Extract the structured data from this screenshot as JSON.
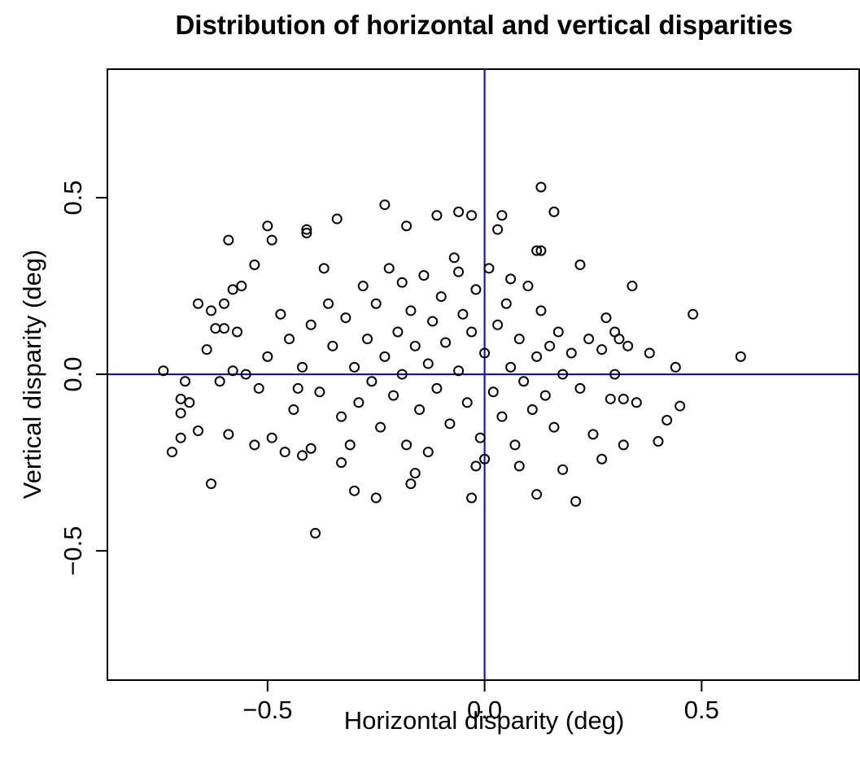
{
  "chart_data": {
    "type": "scatter",
    "title": "Distribution of horizontal and vertical disparities",
    "x_label": "Horizontal disparity (deg)",
    "y_label": "Vertical disparity (deg)",
    "xlim": [
      -0.869,
      0.863
    ],
    "ylim": [
      -0.866,
      0.864
    ],
    "xticks": [
      {
        "value": -0.5,
        "label": "−0.5"
      },
      {
        "value": 0,
        "label": "0.0"
      },
      0.5
    ],
    "yticks": [
      {
        "value": -0.5,
        "label": "−0.5"
      },
      {
        "value": 0,
        "label": "0.0"
      },
      0.5
    ],
    "grid": false,
    "reference_lines": {
      "x": 0,
      "y": 0,
      "color": "#0000cc"
    },
    "series": [
      {
        "color": "#000000",
        "x": [
          -0.74,
          -0.72,
          -0.63,
          -0.39,
          -0.03,
          0.21,
          0.59,
          0.48,
          0.13,
          -0.23,
          0.16,
          -0.06,
          -0.03,
          0.04,
          -0.11,
          -0.5,
          -0.41,
          -0.41,
          -0.34,
          -0.59,
          -0.49,
          -0.18,
          0.03,
          0.12,
          0.13,
          0.22,
          0.34,
          0.38,
          0.44,
          0.45,
          0.42,
          0.4,
          0.32,
          0.27,
          0.25,
          0.18,
          0.12,
          0.08,
          -0.02,
          -0.16,
          -0.17,
          -0.25,
          -0.3,
          -0.33,
          -0.4,
          -0.42,
          -0.46,
          -0.49,
          -0.53,
          -0.59,
          -0.66,
          -0.68,
          -0.7,
          -0.7,
          -0.7,
          -0.69,
          -0.66,
          -0.63,
          -0.62,
          -0.6,
          -0.57,
          -0.56,
          -0.53,
          -0.6,
          -0.58,
          0.28,
          0.3,
          0.31,
          0.33,
          0.35,
          0.3,
          0.27,
          0.32,
          0.29,
          -0.64,
          -0.61,
          -0.58,
          -0.55,
          -0.52,
          -0.5,
          -0.45,
          -0.42,
          -0.4,
          -0.38,
          -0.36,
          -0.35,
          -0.33,
          -0.32,
          -0.3,
          -0.29,
          -0.28,
          -0.27,
          -0.26,
          -0.25,
          -0.24,
          -0.23,
          -0.22,
          -0.21,
          -0.2,
          -0.19,
          -0.18,
          -0.17,
          -0.16,
          -0.15,
          -0.14,
          -0.13,
          -0.12,
          -0.11,
          -0.1,
          -0.09,
          -0.08,
          -0.07,
          -0.06,
          -0.05,
          -0.04,
          -0.03,
          -0.02,
          -0.01,
          0,
          0.01,
          0.02,
          0.03,
          0.04,
          0.05,
          0.06,
          0.07,
          0.08,
          0.09,
          0.1,
          0.11,
          0.12,
          0.13,
          0.14,
          0.15,
          0.16,
          0.17,
          0.18,
          0.2,
          0.22,
          -0.44,
          -0.37,
          -0.31,
          -0.19,
          -0.13,
          -0.06,
          0,
          0.06,
          -0.47,
          -0.43,
          0.24
        ],
        "y": [
          0.01,
          -0.22,
          -0.31,
          -0.45,
          -0.35,
          -0.36,
          0.05,
          0.17,
          0.53,
          0.48,
          0.46,
          0.46,
          0.45,
          0.45,
          0.45,
          0.42,
          0.41,
          0.4,
          0.44,
          0.38,
          0.38,
          0.42,
          0.41,
          0.35,
          0.35,
          0.31,
          0.25,
          0.06,
          0.02,
          -0.09,
          -0.13,
          -0.19,
          -0.2,
          -0.24,
          -0.17,
          -0.27,
          -0.34,
          -0.26,
          -0.26,
          -0.28,
          -0.31,
          -0.35,
          -0.33,
          -0.25,
          -0.21,
          -0.23,
          -0.22,
          -0.18,
          -0.2,
          -0.17,
          -0.16,
          -0.08,
          -0.11,
          -0.18,
          -0.07,
          -0.02,
          0.2,
          0.18,
          0.13,
          0.13,
          0.12,
          0.25,
          0.31,
          0.2,
          0.24,
          0.16,
          0.12,
          0.1,
          0.08,
          -0.08,
          0,
          0.07,
          -0.07,
          -0.07,
          0.07,
          -0.02,
          0.01,
          0,
          -0.04,
          0.05,
          0.1,
          0.02,
          0.14,
          -0.05,
          0.2,
          0.08,
          -0.12,
          0.16,
          0.02,
          -0.08,
          0.25,
          0.1,
          -0.02,
          0.2,
          -0.15,
          0.05,
          0.3,
          -0.06,
          0.12,
          0,
          -0.2,
          0.18,
          0.08,
          -0.1,
          0.28,
          0.03,
          0.15,
          -0.04,
          0.22,
          0.09,
          -0.14,
          0.33,
          0.01,
          0.17,
          -0.08,
          0.12,
          0.24,
          -0.18,
          0.06,
          0.3,
          -0.05,
          0.14,
          -0.12,
          0.2,
          0.02,
          -0.2,
          0.1,
          -0.02,
          0.25,
          -0.1,
          0.05,
          0.18,
          -0.06,
          0.08,
          -0.15,
          0.12,
          0,
          0.06,
          -0.04,
          -0.1,
          0.3,
          -0.2,
          0.26,
          -0.22,
          0.29,
          -0.24,
          0.27,
          0.17,
          -0.04,
          0.1
        ]
      }
    ]
  }
}
